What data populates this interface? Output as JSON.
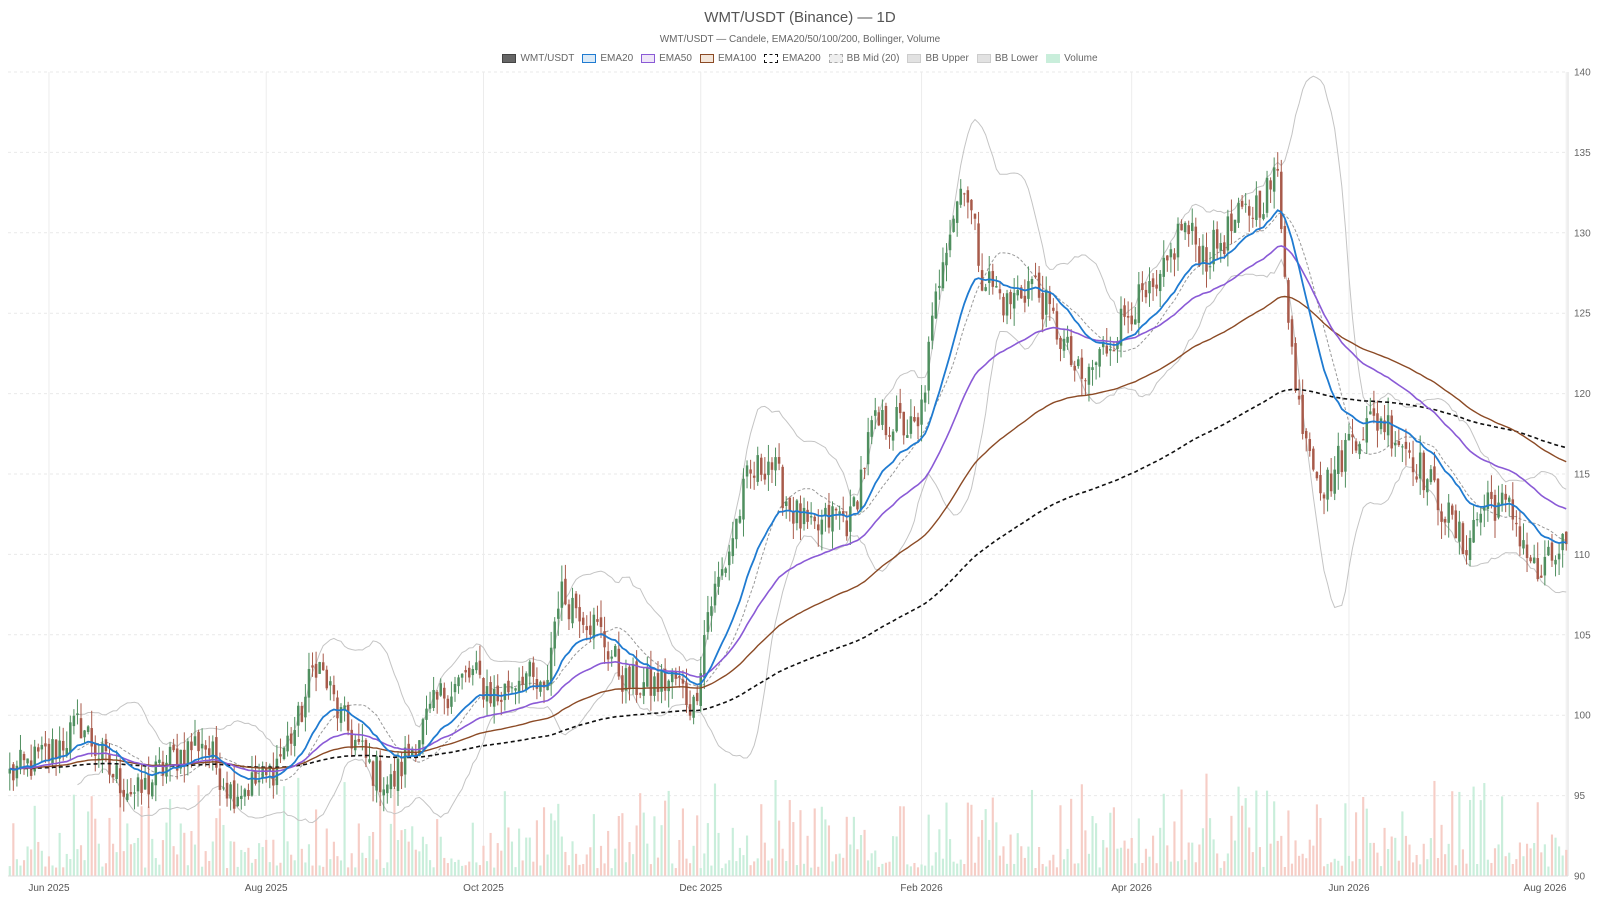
{
  "chart_data": {
    "type": "candlestick",
    "title": "WMT/USDT (Binance) — 1D",
    "subtitle": "WMT/USDT — Candele, EMA20/50/100/200, Bollinger, Volume",
    "legend": [
      {
        "label": "WMT/USDT",
        "fill": "#666666",
        "border": "#444444",
        "dashed": false
      },
      {
        "label": "EMA20",
        "fill": "#dbeaf7",
        "border": "#1f7bd1",
        "dashed": false
      },
      {
        "label": "EMA50",
        "fill": "#efe6f8",
        "border": "#8a5ad6",
        "dashed": false
      },
      {
        "label": "EMA100",
        "fill": "#f4e6da",
        "border": "#8b4a25",
        "dashed": false
      },
      {
        "label": "EMA200",
        "fill": "#ffffff",
        "border": "#111111",
        "dashed": true
      },
      {
        "label": "BB Mid (20)",
        "fill": "#eeeeee",
        "border": "#aaaaaa",
        "dashed": true
      },
      {
        "label": "BB Upper",
        "fill": "#e2e2e2",
        "border": "#cccccc",
        "dashed": false
      },
      {
        "label": "BB Lower",
        "fill": "#e2e2e2",
        "border": "#cccccc",
        "dashed": false
      },
      {
        "label": "Volume",
        "fill": "#c9eedb",
        "border": "#c9eedb",
        "dashed": false
      }
    ],
    "x_ticks": [
      "Jun 2025",
      "Aug 2025",
      "Oct 2025",
      "Dec 2025",
      "Feb 2026",
      "Apr 2026",
      "Jun 2026",
      "Aug 2026"
    ],
    "x_range": [
      "2025-05-21",
      "2026-08-01"
    ],
    "ylim": [
      90,
      140
    ],
    "y_ticks": [
      90,
      95,
      100,
      105,
      110,
      115,
      120,
      125,
      130,
      135,
      140
    ],
    "grid": true,
    "colors": {
      "up": "#4f8f5f",
      "down": "#a85a4a",
      "vol_up": "#c9eedb",
      "vol_down": "#f6cdc6",
      "ema20": "#1f7bd1",
      "ema50": "#8a5ad6",
      "ema100": "#8b4a25",
      "ema200": "#111111",
      "bb": "#c4c4c4",
      "bb_mid": "#999999"
    },
    "close_path": [
      [
        "2025-05-21",
        96.3
      ],
      [
        "2025-06-01",
        97.6
      ],
      [
        "2025-06-10",
        99.5
      ],
      [
        "2025-06-18",
        96.5
      ],
      [
        "2025-06-26",
        95.0
      ],
      [
        "2025-07-05",
        97.2
      ],
      [
        "2025-07-14",
        98.5
      ],
      [
        "2025-07-22",
        95.3
      ],
      [
        "2025-08-01",
        96.0
      ],
      [
        "2025-08-10",
        99.5
      ],
      [
        "2025-08-15",
        103.5
      ],
      [
        "2025-08-22",
        99.8
      ],
      [
        "2025-08-30",
        96.8
      ],
      [
        "2025-09-05",
        95.6
      ],
      [
        "2025-09-12",
        98.5
      ],
      [
        "2025-09-20",
        101.5
      ],
      [
        "2025-09-28",
        102.5
      ],
      [
        "2025-10-05",
        101.0
      ],
      [
        "2025-10-12",
        102.8
      ],
      [
        "2025-10-18",
        101.0
      ],
      [
        "2025-10-22",
        107.5
      ],
      [
        "2025-10-28",
        106.8
      ],
      [
        "2025-11-03",
        105.0
      ],
      [
        "2025-11-10",
        102.0
      ],
      [
        "2025-11-17",
        101.8
      ],
      [
        "2025-11-24",
        102.2
      ],
      [
        "2025-11-29",
        100.5
      ],
      [
        "2025-12-03",
        106.5
      ],
      [
        "2025-12-08",
        109.5
      ],
      [
        "2025-12-14",
        114.5
      ],
      [
        "2025-12-20",
        116.0
      ],
      [
        "2025-12-26",
        113.0
      ],
      [
        "2026-01-01",
        111.2
      ],
      [
        "2026-01-08",
        112.5
      ],
      [
        "2026-01-12",
        112.0
      ],
      [
        "2026-01-18",
        117.8
      ],
      [
        "2026-01-24",
        118.3
      ],
      [
        "2026-01-31",
        117.5
      ],
      [
        "2026-02-07",
        129.0
      ],
      [
        "2026-02-13",
        133.5
      ],
      [
        "2026-02-18",
        127.5
      ],
      [
        "2026-02-25",
        125.5
      ],
      [
        "2026-03-04",
        127.0
      ],
      [
        "2026-03-11",
        124.0
      ],
      [
        "2026-03-18",
        120.5
      ],
      [
        "2026-03-25",
        123.0
      ],
      [
        "2026-04-01",
        125.5
      ],
      [
        "2026-04-08",
        126.0
      ],
      [
        "2026-04-15",
        130.5
      ],
      [
        "2026-04-22",
        128.5
      ],
      [
        "2026-04-30",
        130.5
      ],
      [
        "2026-05-07",
        132.0
      ],
      [
        "2026-05-12",
        133.5
      ],
      [
        "2026-05-17",
        120.0
      ],
      [
        "2026-05-25",
        114.0
      ],
      [
        "2026-06-02",
        117.5
      ],
      [
        "2026-06-10",
        118.5
      ],
      [
        "2026-06-18",
        116.5
      ],
      [
        "2026-06-26",
        113.5
      ],
      [
        "2026-07-03",
        110.5
      ],
      [
        "2026-07-10",
        113.5
      ],
      [
        "2026-07-17",
        112.5
      ],
      [
        "2026-07-24",
        108.5
      ],
      [
        "2026-07-31",
        110.5
      ]
    ],
    "ema20_end": 112.3,
    "ema50_end": 115.4,
    "ema100_end": 117.8,
    "ema200_end": 116.1,
    "volume_range": [
      2,
      28
    ]
  }
}
